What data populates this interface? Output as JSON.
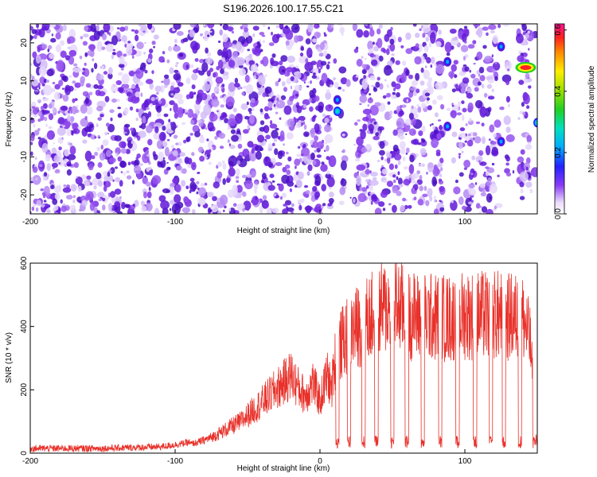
{
  "title": "S196.2026.100.17.55.C21",
  "chart_data": [
    {
      "type": "heatmap",
      "xlabel": "Height of straight line (km)",
      "ylabel": "Frequency (Hz)",
      "xlim": [
        -200,
        150
      ],
      "ylim": [
        -25,
        25
      ],
      "xticks": [
        -200,
        -100,
        0,
        100
      ],
      "yticks": [
        -20,
        -10,
        0,
        10,
        20
      ],
      "colorbar": {
        "label": "Normalized spectral amplitude",
        "range": [
          0.0,
          0.62
        ],
        "ticks": [
          0.0,
          0.2,
          0.4,
          0.6
        ]
      },
      "features": [
        {
          "x": 12,
          "y": 2,
          "value": 0.2
        },
        {
          "x": 12,
          "y": 5,
          "value": 0.16
        },
        {
          "x": 88,
          "y": -2,
          "value": 0.13
        },
        {
          "x": 88,
          "y": 15,
          "value": 0.12
        },
        {
          "x": 125,
          "y": 19,
          "value": 0.13
        },
        {
          "x": 125,
          "y": -6,
          "value": 0.14
        },
        {
          "x": 142,
          "y": 13.5,
          "value": 0.6
        },
        {
          "x": 150,
          "y": -1,
          "value": 0.2
        }
      ],
      "blank_columns": [
        12,
        20,
        88,
        125,
        134,
        148
      ]
    },
    {
      "type": "line",
      "xlabel": "Height of straight line (km)",
      "ylabel": "SNR (10 * v/v)",
      "xlim": [
        -200,
        150
      ],
      "ylim": [
        0,
        600
      ],
      "xticks": [
        -200,
        -100,
        0,
        100
      ],
      "yticks": [
        0,
        200,
        400,
        600
      ],
      "series": [
        {
          "color": "#e8312a",
          "x": [
            -200,
            -150,
            -110,
            -95,
            -85,
            -75,
            -65,
            -55,
            -45,
            -35,
            -25,
            -20,
            -15,
            -10,
            -5,
            0,
            5,
            8,
            10,
            12,
            15,
            20,
            25,
            30,
            35,
            40,
            45,
            50,
            55,
            60,
            70,
            80,
            90,
            100,
            110,
            120,
            130,
            140,
            145,
            150
          ],
          "y": [
            15,
            15,
            20,
            30,
            40,
            60,
            90,
            120,
            170,
            220,
            270,
            300,
            250,
            220,
            270,
            200,
            300,
            240,
            350,
            380,
            420,
            460,
            480,
            500,
            520,
            540,
            555,
            565,
            560,
            530,
            520,
            520,
            515,
            530,
            525,
            530,
            520,
            520,
            430,
            20
          ],
          "dips": [
            12,
            20,
            30,
            39,
            50,
            60,
            71,
            83,
            95,
            107,
            118,
            127,
            138,
            148
          ]
        }
      ]
    }
  ]
}
